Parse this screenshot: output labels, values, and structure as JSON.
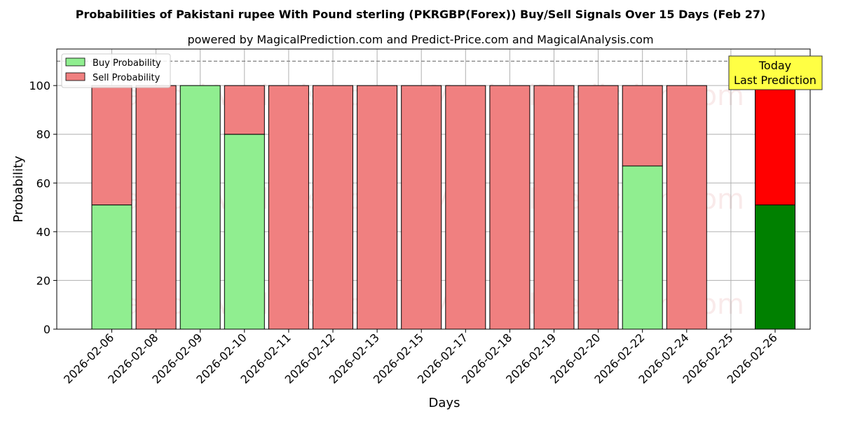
{
  "title": "Probabilities of Pakistani rupee With Pound sterling (PKRGBP(Forex)) Buy/Sell Signals Over 15 Days (Feb 27)",
  "subtitle": "powered by MagicalPrediction.com and Predict-Price.com and MagicalAnalysis.com",
  "watermarks": [
    "MagicalAnalysis.com",
    "MagicalPrediction.com"
  ],
  "colors": {
    "buy": "#90ee90",
    "sell": "#f08080",
    "buy_today": "#008000",
    "sell_today": "#ff0000",
    "today_box": "#ffff44"
  },
  "chart_data": {
    "type": "bar",
    "stacked": true,
    "categories": [
      "2026-02-06",
      "2026-02-08",
      "2026-02-09",
      "2026-02-10",
      "2026-02-11",
      "2026-02-12",
      "2026-02-13",
      "2026-02-15",
      "2026-02-17",
      "2026-02-18",
      "2026-02-19",
      "2026-02-20",
      "2026-02-22",
      "2026-02-24",
      "2026-02-25",
      "2026-02-26"
    ],
    "series": [
      {
        "name": "Buy Probability",
        "values": [
          51,
          0,
          100,
          80,
          0,
          0,
          0,
          0,
          0,
          0,
          0,
          0,
          67,
          0,
          null,
          51
        ]
      },
      {
        "name": "Sell Probability",
        "values": [
          49,
          100,
          0,
          20,
          100,
          100,
          100,
          100,
          100,
          100,
          100,
          100,
          33,
          100,
          null,
          49
        ]
      }
    ],
    "xlabel": "Days",
    "ylabel": "Probability",
    "ylim": [
      0,
      115
    ],
    "yticks": [
      0,
      20,
      40,
      60,
      80,
      100
    ],
    "reference_line": 110,
    "grid": true,
    "legend_position": "top-left",
    "annotation": {
      "lines": [
        "Today",
        "Last Prediction"
      ],
      "category": "2026-02-26"
    }
  }
}
